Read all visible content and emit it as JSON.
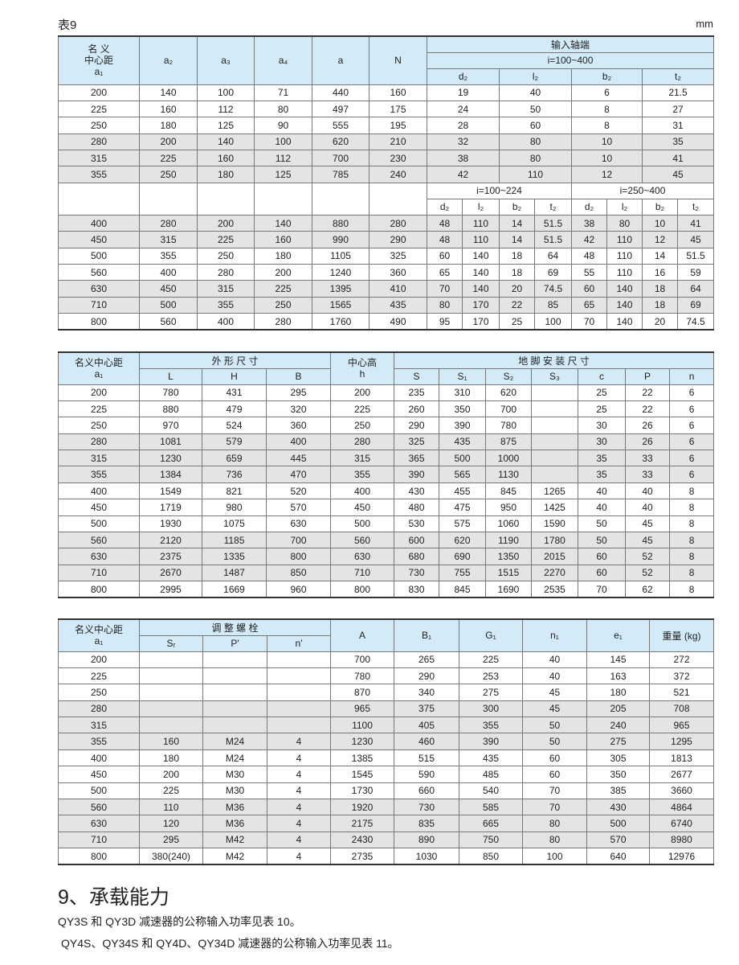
{
  "doc": {
    "title": "表9",
    "unit": "mm"
  },
  "t1": {
    "a1_lines": [
      "名 义",
      "中心距",
      "a₁"
    ],
    "cols": [
      "a₂",
      "a₃",
      "a₄",
      "a",
      "N"
    ],
    "input_shaft": "输入轴端",
    "ratio_all": "i=100~400",
    "ratio_low": "i=100~224",
    "ratio_high": "i=250~400",
    "shaft_cols": [
      "d₂",
      "l₂",
      "b₂",
      "t₂"
    ],
    "rows_a": [
      [
        "200",
        "140",
        "100",
        "71",
        "440",
        "160",
        "19",
        "40",
        "6",
        "21.5"
      ],
      [
        "225",
        "160",
        "112",
        "80",
        "497",
        "175",
        "24",
        "50",
        "8",
        "27"
      ],
      [
        "250",
        "180",
        "125",
        "90",
        "555",
        "195",
        "28",
        "60",
        "8",
        "31"
      ],
      [
        "280",
        "200",
        "140",
        "100",
        "620",
        "210",
        "32",
        "80",
        "10",
        "35"
      ],
      [
        "315",
        "225",
        "160",
        "112",
        "700",
        "230",
        "38",
        "80",
        "10",
        "41"
      ],
      [
        "355",
        "250",
        "180",
        "125",
        "785",
        "240",
        "42",
        "110",
        "12",
        "45"
      ]
    ],
    "rows_b": [
      [
        "400",
        "280",
        "200",
        "140",
        "880",
        "280",
        "48",
        "110",
        "14",
        "51.5",
        "38",
        "80",
        "10",
        "41"
      ],
      [
        "450",
        "315",
        "225",
        "160",
        "990",
        "290",
        "48",
        "110",
        "14",
        "51.5",
        "42",
        "110",
        "12",
        "45"
      ],
      [
        "500",
        "355",
        "250",
        "180",
        "1105",
        "325",
        "60",
        "140",
        "18",
        "64",
        "48",
        "110",
        "14",
        "51.5"
      ],
      [
        "560",
        "400",
        "280",
        "200",
        "1240",
        "360",
        "65",
        "140",
        "18",
        "69",
        "55",
        "110",
        "16",
        "59"
      ],
      [
        "630",
        "450",
        "315",
        "225",
        "1395",
        "410",
        "70",
        "140",
        "20",
        "74.5",
        "60",
        "140",
        "18",
        "64"
      ],
      [
        "710",
        "500",
        "355",
        "250",
        "1565",
        "435",
        "80",
        "170",
        "22",
        "85",
        "65",
        "140",
        "18",
        "69"
      ],
      [
        "800",
        "560",
        "400",
        "280",
        "1760",
        "490",
        "95",
        "170",
        "25",
        "100",
        "70",
        "140",
        "20",
        "74.5"
      ]
    ]
  },
  "t2": {
    "a1_lines": [
      "名义中心距",
      "a₁"
    ],
    "outline": "外 形 尺 寸",
    "outline_cols": [
      "L",
      "H",
      "B"
    ],
    "center_height_lines": [
      "中心高",
      "h"
    ],
    "foundation": "地 脚 安 装 尺 寸",
    "foundation_cols": [
      "S",
      "S₁",
      "S₂",
      "S₃",
      "c",
      "P",
      "n"
    ],
    "rows": [
      [
        "200",
        "780",
        "431",
        "295",
        "200",
        "235",
        "310",
        "620",
        "",
        "25",
        "22",
        "6"
      ],
      [
        "225",
        "880",
        "479",
        "320",
        "225",
        "260",
        "350",
        "700",
        "",
        "25",
        "22",
        "6"
      ],
      [
        "250",
        "970",
        "524",
        "360",
        "250",
        "290",
        "390",
        "780",
        "",
        "30",
        "26",
        "6"
      ],
      [
        "280",
        "1081",
        "579",
        "400",
        "280",
        "325",
        "435",
        "875",
        "",
        "30",
        "26",
        "6"
      ],
      [
        "315",
        "1230",
        "659",
        "445",
        "315",
        "365",
        "500",
        "1000",
        "",
        "35",
        "33",
        "6"
      ],
      [
        "355",
        "1384",
        "736",
        "470",
        "355",
        "390",
        "565",
        "1130",
        "",
        "35",
        "33",
        "6"
      ],
      [
        "400",
        "1549",
        "821",
        "520",
        "400",
        "430",
        "455",
        "845",
        "1265",
        "40",
        "40",
        "8"
      ],
      [
        "450",
        "1719",
        "980",
        "570",
        "450",
        "480",
        "475",
        "950",
        "1425",
        "40",
        "40",
        "8"
      ],
      [
        "500",
        "1930",
        "1075",
        "630",
        "500",
        "530",
        "575",
        "1060",
        "1590",
        "50",
        "45",
        "8"
      ],
      [
        "560",
        "2120",
        "1185",
        "700",
        "560",
        "600",
        "620",
        "1190",
        "1780",
        "50",
        "45",
        "8"
      ],
      [
        "630",
        "2375",
        "1335",
        "800",
        "630",
        "680",
        "690",
        "1350",
        "2015",
        "60",
        "52",
        "8"
      ],
      [
        "710",
        "2670",
        "1487",
        "850",
        "710",
        "730",
        "755",
        "1515",
        "2270",
        "60",
        "52",
        "8"
      ],
      [
        "800",
        "2995",
        "1669",
        "960",
        "800",
        "830",
        "845",
        "1690",
        "2535",
        "70",
        "62",
        "8"
      ]
    ]
  },
  "t3": {
    "a1_lines": [
      "名义中心距",
      "a₁"
    ],
    "bolt": "调 整 螺 栓",
    "bolt_cols": [
      "Sᵣ",
      "P'",
      "n'"
    ],
    "cols": [
      "A",
      "B₁",
      "G₁",
      "n₁",
      "e₁",
      "重量 (kg)"
    ],
    "rows": [
      [
        "200",
        "",
        "",
        "",
        "700",
        "265",
        "225",
        "40",
        "145",
        "272"
      ],
      [
        "225",
        "",
        "",
        "",
        "780",
        "290",
        "253",
        "40",
        "163",
        "372"
      ],
      [
        "250",
        "",
        "",
        "",
        "870",
        "340",
        "275",
        "45",
        "180",
        "521"
      ],
      [
        "280",
        "",
        "",
        "",
        "965",
        "375",
        "300",
        "45",
        "205",
        "708"
      ],
      [
        "315",
        "",
        "",
        "",
        "1100",
        "405",
        "355",
        "50",
        "240",
        "965"
      ],
      [
        "355",
        "160",
        "M24",
        "4",
        "1230",
        "460",
        "390",
        "50",
        "275",
        "1295"
      ],
      [
        "400",
        "180",
        "M24",
        "4",
        "1385",
        "515",
        "435",
        "60",
        "305",
        "1813"
      ],
      [
        "450",
        "200",
        "M30",
        "4",
        "1545",
        "590",
        "485",
        "60",
        "350",
        "2677"
      ],
      [
        "500",
        "225",
        "M30",
        "4",
        "1730",
        "660",
        "540",
        "70",
        "385",
        "3660"
      ],
      [
        "560",
        "110",
        "M36",
        "4",
        "1920",
        "730",
        "585",
        "70",
        "430",
        "4864"
      ],
      [
        "630",
        "120",
        "M36",
        "4",
        "2175",
        "835",
        "665",
        "80",
        "500",
        "6740"
      ],
      [
        "710",
        "295",
        "M42",
        "4",
        "2430",
        "890",
        "750",
        "80",
        "570",
        "8980"
      ],
      [
        "800",
        "380(240)",
        "M42",
        "4",
        "2735",
        "1030",
        "850",
        "100",
        "640",
        "12976"
      ]
    ]
  },
  "section": {
    "heading": "9、承载能力",
    "para1": "QY3S 和 QY3D 减速器的公称输入功率见表 10。",
    "para2": "QY4S、QY34S 和 QY4D、QY34D 减速器的公称输入功率见表 11。"
  }
}
